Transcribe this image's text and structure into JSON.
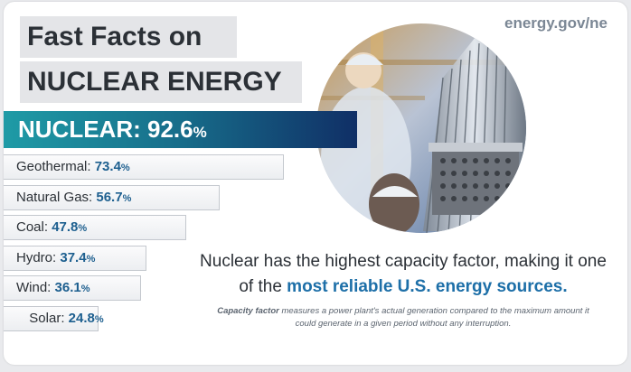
{
  "title": {
    "line1": "Fast Facts on",
    "line2": "NUCLEAR ENERGY"
  },
  "source": "energy.gov/ne",
  "highlight": {
    "label": "NUCLEAR",
    "sep": ":",
    "value": "92.6",
    "unit": "%"
  },
  "tagline": {
    "part1": "Nuclear has the highest capacity factor, making it one of the ",
    "highlight": "most reliable U.S. energy sources."
  },
  "footnote": {
    "term": "Capacity factor",
    "text": " measures a power plant's actual generation compared to the maximum amount it could generate in a given period without any interruption."
  },
  "photo": {
    "icon": "nuclear-fuel-assembly-photo",
    "colors": {
      "warm": "#d6a35a",
      "cool": "#8fa9c9"
    }
  },
  "chart_data": {
    "type": "bar",
    "orientation": "horizontal",
    "categories": [
      "NUCLEAR",
      "Geothermal",
      "Natural Gas",
      "Coal",
      "Hydro",
      "Wind",
      "Solar"
    ],
    "values": [
      92.6,
      73.4,
      56.7,
      47.8,
      37.4,
      36.1,
      24.8
    ],
    "display_labels": [
      "NUCLEAR",
      "Geothermal",
      "Natural Gas",
      "Coal",
      "Hydro",
      "Wind",
      "Solar"
    ],
    "unit": "%",
    "xlim": [
      0,
      100
    ],
    "colors": {
      "highlight": "#176d8a",
      "bar": "#eceef1",
      "value_text": "#1d5f8f"
    }
  }
}
